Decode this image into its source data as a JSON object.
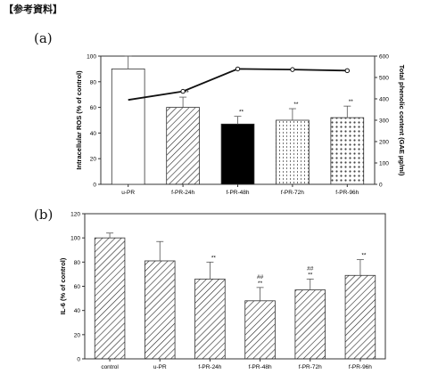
{
  "page_title": "【参考資料】",
  "chart_data": [
    {
      "panel": "(a)",
      "type": "bar",
      "categories": [
        "u-PR",
        "f-PR-24h",
        "f-PR-48h",
        "f-PR-72h",
        "f-PR-96h"
      ],
      "series": [
        {
          "values": [
            90,
            60,
            47,
            50,
            52
          ],
          "errors": [
            10,
            8,
            6,
            9,
            9
          ],
          "annotations": [
            "",
            "**",
            "**",
            "**",
            "**"
          ]
        },
        {
          "type": "line",
          "axis": "right",
          "values": [
            395,
            435,
            540,
            537,
            532
          ]
        }
      ],
      "ylabel": "Intracellular ROS (% of control)",
      "ylim": [
        0,
        100
      ],
      "yticks": [
        0,
        20,
        40,
        60,
        80,
        100
      ],
      "y2label": "Total phenolic content (GAE μg/ml)",
      "y2lim": [
        0,
        600
      ],
      "y2ticks": [
        0,
        100,
        200,
        300,
        400,
        500,
        600
      ],
      "fills": [
        "open",
        "diagonal-hatch",
        "solid-black",
        "vertical-dots",
        "dots"
      ]
    },
    {
      "panel": "(b)",
      "type": "bar",
      "categories": [
        "control",
        "u-PR",
        "f-PR-24h",
        "f-PR-48h",
        "f-PR-72h",
        "f-PR-96h"
      ],
      "series": [
        {
          "values": [
            100,
            81,
            66,
            48,
            57,
            69
          ],
          "errors": [
            4,
            16,
            14,
            11,
            9,
            13
          ],
          "annotations": [
            "",
            "",
            "**",
            "##\n**",
            "##\n**",
            "**"
          ]
        }
      ],
      "ylabel": "IL-6 (% of control)",
      "ylim": [
        0,
        120
      ],
      "yticks": [
        0,
        20,
        40,
        60,
        80,
        100,
        120
      ]
    }
  ]
}
